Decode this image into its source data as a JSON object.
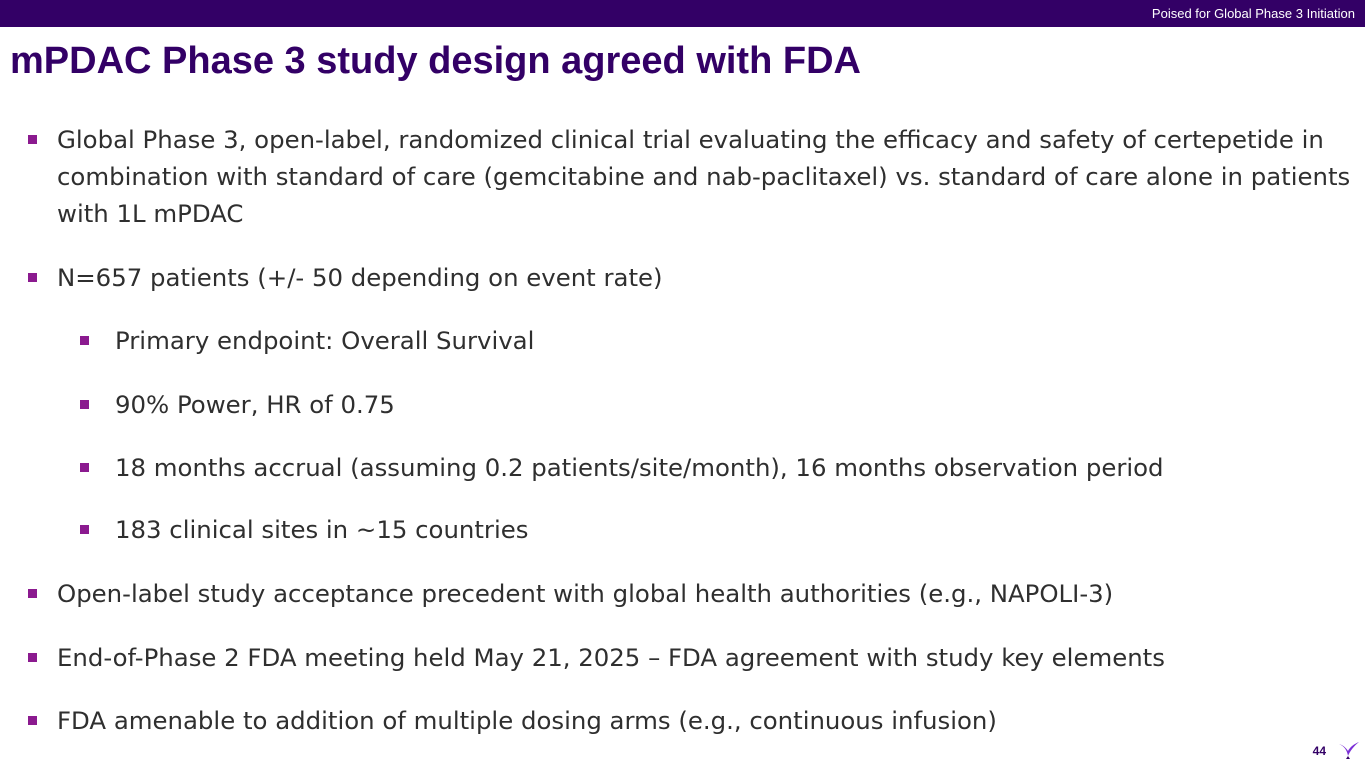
{
  "header": {
    "label": "Poised for Global Phase 3 Initiation"
  },
  "slide": {
    "title": "mPDAC Phase 3 study design agreed with FDA",
    "bullets": [
      {
        "level": 1,
        "text": "Global Phase 3, open-label, randomized clinical trial evaluating the efficacy and safety of certepetide in combination with standard of care (gemcitabine and nab-paclitaxel) vs. standard of care alone in patients with 1L mPDAC"
      },
      {
        "level": 1,
        "text": "N=657 patients (+/- 50 depending on event rate)"
      },
      {
        "level": 2,
        "text": "Primary endpoint: Overall Survival"
      },
      {
        "level": 2,
        "text": "90% Power, HR of 0.75"
      },
      {
        "level": 2,
        "text": "18 months accrual (assuming 0.2 patients/site/month), 16 months observation period"
      },
      {
        "level": 2,
        "text": "183 clinical sites in ~15 countries"
      },
      {
        "level": 1,
        "text": "Open-label study acceptance precedent with global health authorities (e.g., NAPOLI-3)"
      },
      {
        "level": 1,
        "text": "End-of-Phase 2 FDA meeting held May 21, 2025 – FDA agreement with study key elements"
      },
      {
        "level": 1,
        "text": "FDA amenable to addition of multiple dosing arms (e.g., continuous infusion)"
      }
    ]
  },
  "footer": {
    "page_number": "44",
    "logo_icon": "bird-logo-icon"
  },
  "colors": {
    "brand_purple": "#330066",
    "bullet_magenta": "#8b1a8f",
    "logo_violet": "#7b2fd6"
  }
}
